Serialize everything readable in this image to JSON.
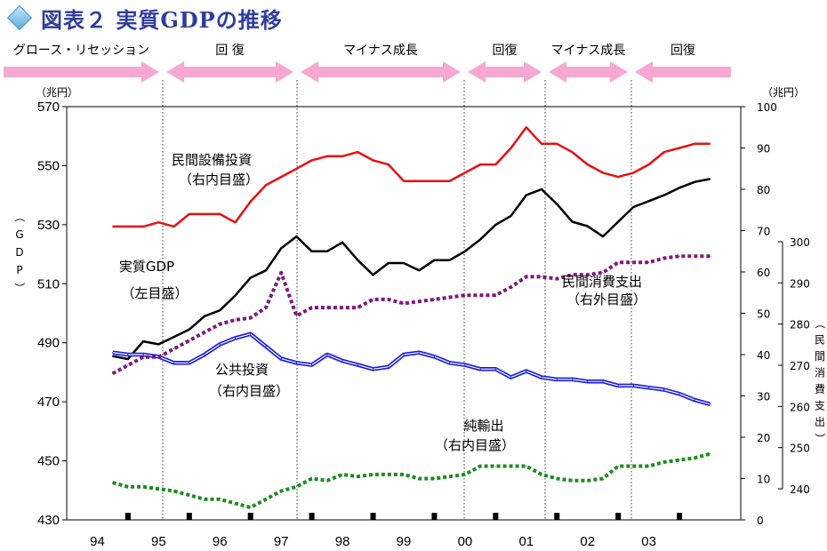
{
  "title": "図表２ 実質GDPの推移",
  "phases": [
    {
      "label": "グロース・リセッション",
      "arrow": "right"
    },
    {
      "label": "回 復",
      "arrow": "both"
    },
    {
      "label": "マイナス成長",
      "arrow": "both"
    },
    {
      "label": "回復",
      "arrow": "both"
    },
    {
      "label": "マイナス成長",
      "arrow": "both"
    },
    {
      "label": "回復",
      "arrow": "left"
    }
  ],
  "colors": {
    "gdp": "#000000",
    "equipment": "#e81010",
    "public": "#1a1ae0",
    "consumption": "#7b1a7b",
    "exports": "#1f8a1f",
    "arrow": "#f7a8d0"
  },
  "chart_data": {
    "type": "line",
    "x_labels": [
      "94",
      "95",
      "96",
      "97",
      "98",
      "99",
      "00",
      "01",
      "02",
      "03"
    ],
    "axes": {
      "left": {
        "unit": "（兆円）",
        "label": "（GDP）",
        "ylim": [
          430,
          570
        ],
        "ticks": [
          430,
          450,
          470,
          490,
          510,
          530,
          550,
          570
        ]
      },
      "right_inner": {
        "unit": "（兆円）",
        "ylim": [
          0,
          100
        ],
        "ticks": [
          0,
          10,
          20,
          30,
          40,
          50,
          60,
          70,
          80,
          90,
          100
        ]
      },
      "right_outer": {
        "label": "（民間消費支出）",
        "ylim": [
          240,
          300
        ],
        "ticks": [
          240,
          250,
          260,
          270,
          280,
          290,
          300
        ]
      }
    },
    "x_quarters_start": 1993.75,
    "series": [
      {
        "key": "gdp",
        "axis": "left",
        "style": "solid",
        "values": [
          485.5,
          484.5,
          490.5,
          489.5,
          492,
          494.5,
          499,
          501,
          506,
          512,
          514.5,
          522,
          526,
          521,
          521,
          524,
          518,
          513,
          517,
          517,
          514.5,
          518,
          518,
          521,
          525,
          530,
          533,
          540,
          542,
          537,
          531,
          529.5,
          526,
          531,
          536,
          538,
          540,
          542.5,
          544.5,
          545.5
        ]
      },
      {
        "key": "equipment",
        "axis": "right_inner",
        "style": "solid",
        "values": [
          71,
          71,
          71,
          72,
          71,
          74,
          74,
          74,
          72,
          77,
          81,
          83,
          85,
          87,
          88,
          88,
          89,
          87,
          86,
          82,
          82,
          82,
          82,
          84,
          86,
          86,
          90,
          95,
          91,
          91,
          89,
          86,
          84,
          83,
          84,
          86,
          89,
          90,
          91,
          91
        ]
      },
      {
        "key": "public",
        "axis": "right_inner",
        "style": "double",
        "values": [
          40.5,
          40,
          40,
          39.5,
          38,
          38,
          40,
          42.5,
          44,
          45,
          42,
          39,
          38,
          37.5,
          40,
          38.5,
          37.5,
          36.5,
          37,
          40,
          40.5,
          39.5,
          38,
          37.5,
          36.5,
          36.5,
          34.5,
          36,
          34.5,
          34,
          34,
          33.5,
          33.5,
          32.5,
          32.5,
          32,
          31.5,
          30.5,
          29,
          28
        ]
      },
      {
        "key": "consumption",
        "axis": "right_outer",
        "style": "dotted",
        "values": [
          268,
          270,
          272,
          272,
          274,
          276,
          278,
          280,
          281,
          281.5,
          284,
          292.5,
          282,
          284,
          284,
          284,
          284,
          286,
          286,
          285,
          285.5,
          286,
          286.5,
          287,
          287,
          287,
          289,
          291.5,
          291.5,
          291,
          292,
          292,
          292.5,
          295,
          295,
          295,
          296,
          296.5,
          296.5,
          296.5
        ]
      },
      {
        "key": "exports",
        "axis": "right_inner",
        "style": "dotted",
        "values": [
          9,
          8,
          8,
          7.5,
          7,
          6,
          5,
          5,
          4,
          3,
          5,
          7,
          8,
          10,
          9.5,
          11,
          10.5,
          11,
          11,
          11,
          10,
          10,
          10.5,
          11,
          13,
          13,
          13,
          13,
          11,
          10,
          9.5,
          9.5,
          10,
          13,
          13,
          13,
          14,
          14.5,
          15,
          16
        ]
      }
    ]
  },
  "annotations": {
    "equipment": [
      "民間設備投資",
      "（右内目盛）"
    ],
    "gdp": [
      "実質GDP",
      "（左目盛）"
    ],
    "public": [
      "公共投資",
      "（右内目盛）"
    ],
    "consumption": [
      "民間消費支出",
      "（右外目盛）"
    ],
    "exports": [
      "純輸出",
      "（右内目盛）"
    ]
  }
}
